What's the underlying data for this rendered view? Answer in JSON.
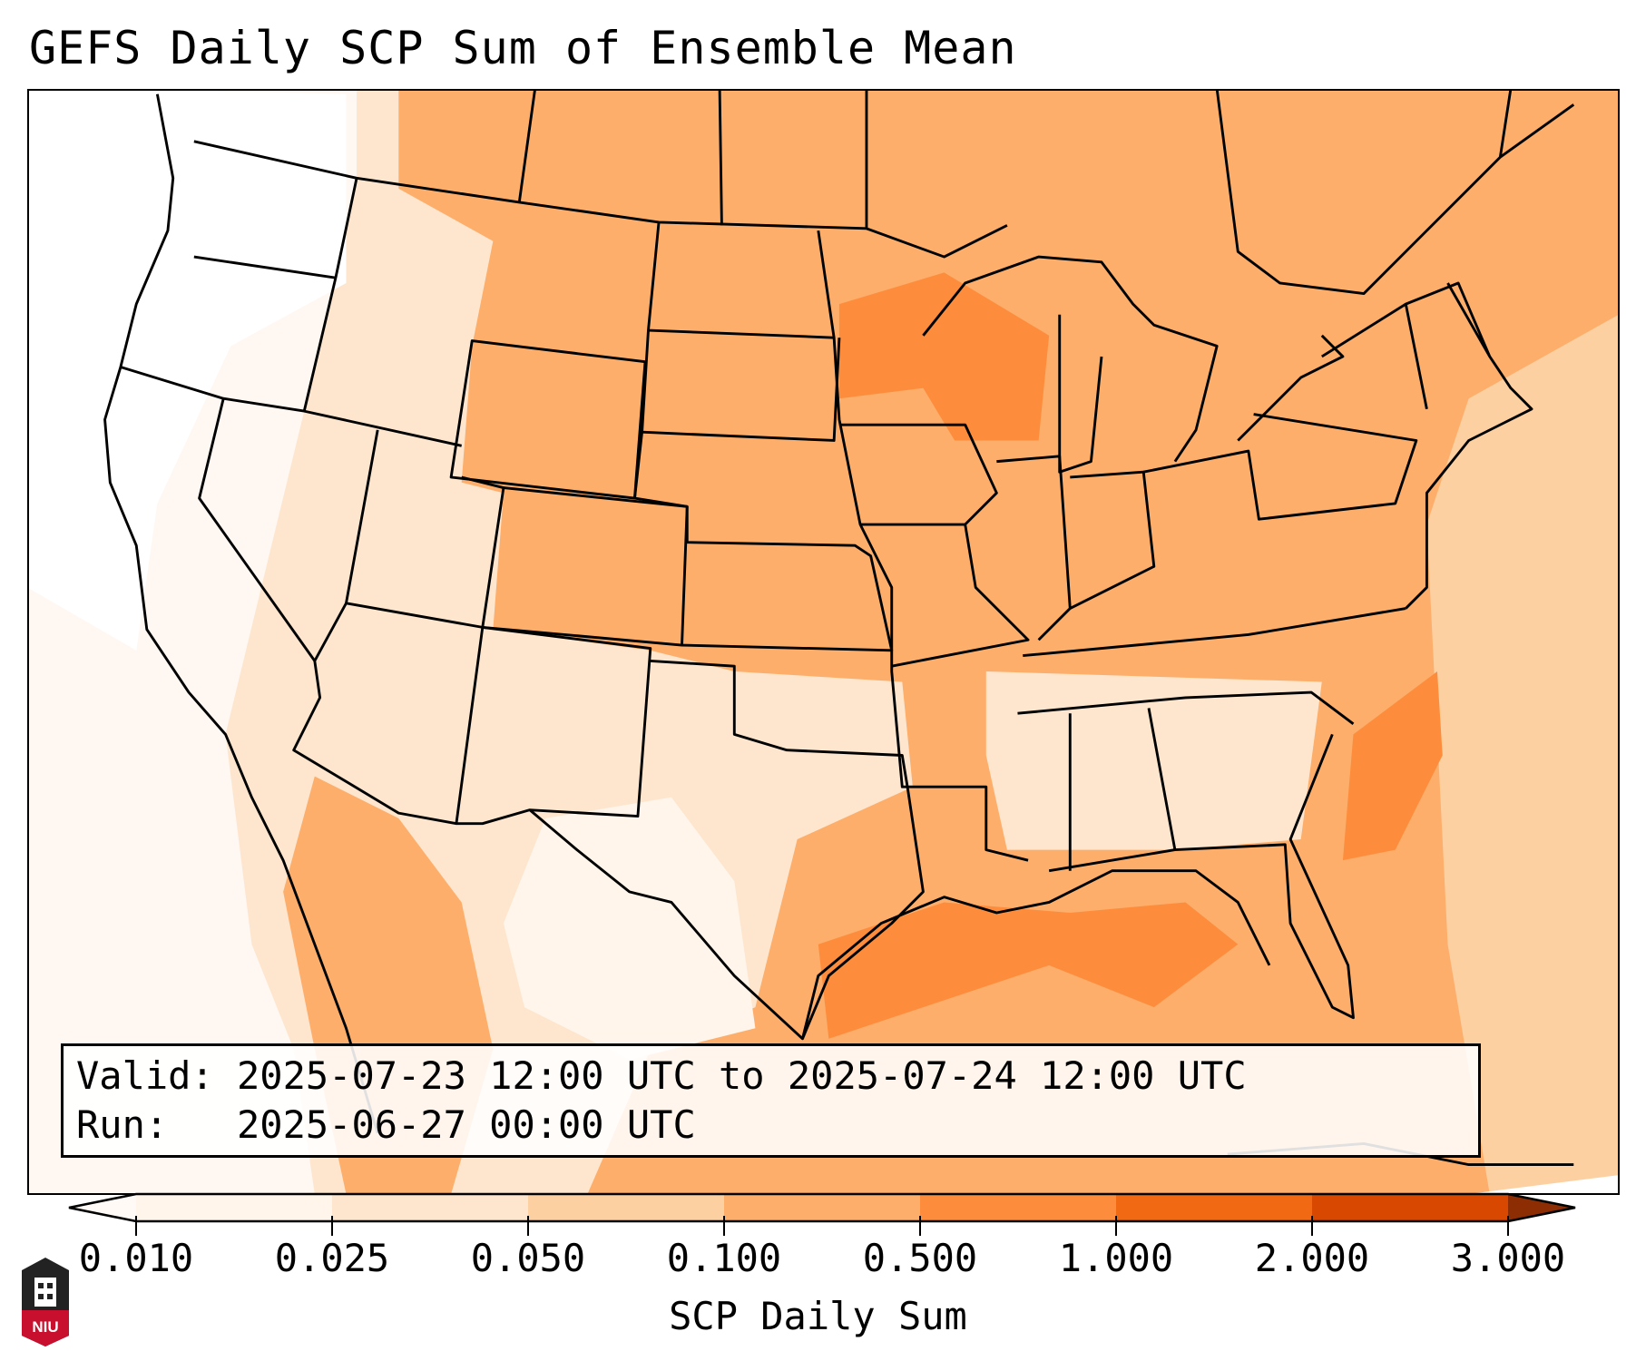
{
  "title": "GEFS Daily SCP Sum of Ensemble Mean",
  "info": {
    "valid_label": "Valid:",
    "valid_value": "2025-07-23 12:00 UTC to 2025-07-24 12:00 UTC",
    "run_label": "Run:",
    "run_value": "2025-06-27 00:00 UTC"
  },
  "colorbar": {
    "label": "SCP Daily Sum",
    "ticks": [
      "0.010",
      "0.025",
      "0.050",
      "0.100",
      "0.500",
      "1.000",
      "2.000",
      "3.000"
    ],
    "colors": [
      "#fffaf5",
      "#fff5eb",
      "#fee6ce",
      "#fdd0a2",
      "#fdae6b",
      "#fd8d3c",
      "#f16913",
      "#d94801",
      "#8c2d04"
    ],
    "extend": "both"
  },
  "logo": {
    "text": "NIU"
  }
}
